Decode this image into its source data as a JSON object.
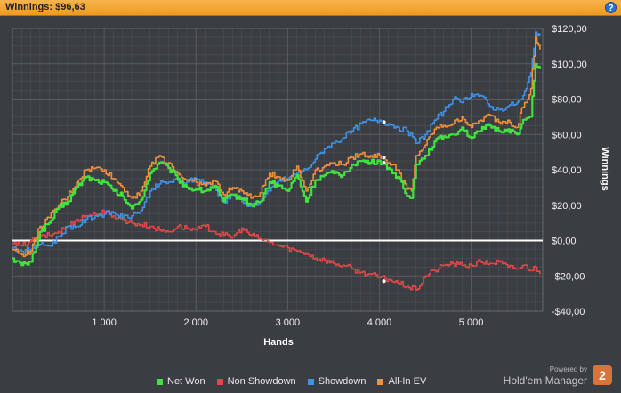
{
  "header": {
    "title": "Winnings: $96,63",
    "help_label": "?"
  },
  "brand": {
    "powered_by": "Powered by",
    "name": "Hold'em Manager",
    "logo_text": "2"
  },
  "colors": {
    "background": "#3a3d42",
    "grid": "#5a5d62",
    "zero_line": "#ffffff",
    "net_won": "#3fe23f",
    "non_showdown": "#e04848",
    "showdown": "#3f92e6",
    "all_in_ev": "#f0903a"
  },
  "chart_data": {
    "type": "line",
    "xlabel": "Hands",
    "ylabel": "Winnings",
    "xlim": [
      0,
      5780
    ],
    "ylim": [
      -40,
      120
    ],
    "x_ticks": [
      1000,
      2000,
      3000,
      4000,
      5000
    ],
    "x_tick_labels": [
      "1 000",
      "2 000",
      "3 000",
      "4 000",
      "5 000"
    ],
    "y_ticks": [
      -40,
      -20,
      0,
      20,
      40,
      60,
      80,
      100,
      120
    ],
    "y_tick_labels": [
      "-$40,00",
      "-$20,00",
      "$0,00",
      "$20,00",
      "$40,00",
      "$60,00",
      "$80,00",
      "$100,00",
      "$120,00"
    ],
    "grid": true,
    "legend_position": "bottom",
    "series": [
      {
        "name": "Net Won",
        "color": "#3fe23f",
        "x": [
          0,
          100,
          200,
          300,
          400,
          500,
          600,
          700,
          800,
          900,
          1000,
          1100,
          1200,
          1300,
          1400,
          1500,
          1600,
          1700,
          1800,
          1900,
          2000,
          2100,
          2200,
          2300,
          2400,
          2500,
          2600,
          2700,
          2800,
          2900,
          3000,
          3100,
          3200,
          3300,
          3400,
          3500,
          3600,
          3700,
          3800,
          3900,
          4000,
          4050,
          4100,
          4200,
          4300,
          4350,
          4400,
          4500,
          4600,
          4700,
          4800,
          4900,
          5000,
          5100,
          5200,
          5300,
          5400,
          5500,
          5550,
          5600,
          5650,
          5700,
          5750
        ],
        "y": [
          -10,
          -14,
          -12,
          5,
          10,
          18,
          22,
          30,
          36,
          34,
          33,
          28,
          25,
          18,
          23,
          38,
          44,
          41,
          35,
          30,
          29,
          28,
          31,
          22,
          26,
          24,
          20,
          22,
          33,
          31,
          28,
          37,
          22,
          34,
          37,
          38,
          37,
          43,
          45,
          44,
          45,
          43,
          41,
          36,
          25,
          24,
          43,
          48,
          56,
          59,
          60,
          64,
          58,
          62,
          65,
          62,
          63,
          60,
          66,
          69,
          70,
          100,
          97
        ]
      },
      {
        "name": "Non Showdown",
        "color": "#e04848",
        "x": [
          0,
          100,
          200,
          300,
          400,
          500,
          600,
          700,
          800,
          900,
          1000,
          1100,
          1200,
          1300,
          1400,
          1500,
          1600,
          1700,
          1800,
          1900,
          2000,
          2100,
          2200,
          2300,
          2400,
          2500,
          2600,
          2700,
          2800,
          2900,
          3000,
          3100,
          3200,
          3300,
          3400,
          3500,
          3600,
          3700,
          3800,
          3900,
          4000,
          4100,
          4200,
          4300,
          4400,
          4500,
          4600,
          4700,
          4800,
          4900,
          5000,
          5100,
          5200,
          5300,
          5400,
          5500,
          5600,
          5650,
          5700,
          5750
        ],
        "y": [
          -2,
          -3,
          0,
          2,
          3,
          5,
          8,
          12,
          14,
          15,
          16,
          14,
          12,
          10,
          9,
          8,
          6,
          5,
          8,
          7,
          6,
          8,
          5,
          3,
          2,
          7,
          3,
          1,
          -1,
          -3,
          -4,
          -6,
          -7,
          -10,
          -11,
          -13,
          -14,
          -16,
          -18,
          -19,
          -21,
          -22,
          -24,
          -26,
          -28,
          -20,
          -17,
          -14,
          -13,
          -14,
          -14,
          -12,
          -13,
          -12,
          -15,
          -16,
          -14,
          -17,
          -15,
          -19
        ]
      },
      {
        "name": "Showdown",
        "color": "#3f92e6",
        "x": [
          0,
          100,
          200,
          300,
          400,
          500,
          600,
          700,
          800,
          900,
          1000,
          1100,
          1200,
          1300,
          1400,
          1500,
          1600,
          1700,
          1800,
          1900,
          2000,
          2100,
          2200,
          2300,
          2400,
          2500,
          2600,
          2700,
          2800,
          2900,
          3000,
          3100,
          3200,
          3300,
          3400,
          3500,
          3600,
          3700,
          3800,
          3900,
          4000,
          4050,
          4100,
          4200,
          4300,
          4400,
          4500,
          4600,
          4700,
          4800,
          4900,
          5000,
          5100,
          5200,
          5300,
          5400,
          5500,
          5550,
          5600,
          5650,
          5700,
          5750
        ],
        "y": [
          -4,
          -6,
          -5,
          -2,
          -3,
          2,
          8,
          8,
          12,
          14,
          15,
          16,
          13,
          14,
          17,
          28,
          32,
          33,
          34,
          33,
          35,
          33,
          30,
          22,
          26,
          22,
          20,
          22,
          28,
          34,
          35,
          38,
          40,
          46,
          52,
          55,
          58,
          62,
          66,
          68,
          68,
          67,
          66,
          64,
          62,
          55,
          60,
          68,
          73,
          80,
          78,
          83,
          82,
          76,
          74,
          76,
          78,
          80,
          86,
          95,
          118,
          116
        ]
      },
      {
        "name": "All-In EV",
        "color": "#f0903a",
        "x": [
          0,
          100,
          200,
          300,
          400,
          500,
          600,
          700,
          800,
          900,
          1000,
          1100,
          1200,
          1300,
          1400,
          1500,
          1600,
          1700,
          1800,
          1900,
          2000,
          2100,
          2200,
          2300,
          2400,
          2500,
          2600,
          2700,
          2800,
          2900,
          3000,
          3100,
          3200,
          3300,
          3400,
          3500,
          3600,
          3700,
          3800,
          3900,
          4000,
          4050,
          4100,
          4200,
          4300,
          4350,
          4400,
          4500,
          4600,
          4700,
          4800,
          4900,
          5000,
          5100,
          5200,
          5300,
          5400,
          5500,
          5550,
          5600,
          5650,
          5700,
          5750
        ],
        "y": [
          -5,
          -8,
          -6,
          8,
          13,
          20,
          25,
          33,
          40,
          41,
          40,
          35,
          30,
          24,
          28,
          42,
          48,
          44,
          38,
          34,
          33,
          31,
          34,
          26,
          30,
          28,
          24,
          27,
          38,
          36,
          34,
          42,
          28,
          40,
          42,
          44,
          43,
          47,
          49,
          48,
          48,
          46,
          44,
          40,
          29,
          28,
          48,
          54,
          63,
          65,
          66,
          70,
          64,
          68,
          71,
          67,
          68,
          64,
          75,
          78,
          86,
          115,
          108
        ]
      }
    ],
    "markers": [
      {
        "series": "Showdown",
        "x": 4050,
        "y": 67
      },
      {
        "series": "All-In EV",
        "x": 4050,
        "y": 47
      },
      {
        "series": "Net Won",
        "x": 4050,
        "y": 44
      },
      {
        "series": "Non Showdown",
        "x": 4050,
        "y": -23
      }
    ]
  }
}
